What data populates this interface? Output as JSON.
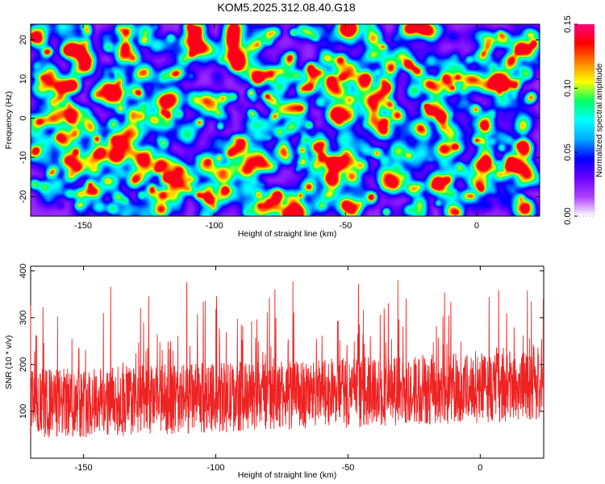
{
  "title": "KOM5.2025.312.08.40.G18",
  "chart_data": [
    {
      "type": "heatmap",
      "xlabel": "Height of straight line (km)",
      "ylabel": "Frequency (Hz)",
      "xlim": [
        -170,
        24
      ],
      "ylim": [
        -25,
        24
      ],
      "xticks": [
        -150,
        -100,
        -50,
        0
      ],
      "yticks": [
        -20,
        -10,
        0,
        10,
        20
      ],
      "colorbar": {
        "label": "Normalized spectral amplitude",
        "range": [
          0.0,
          0.15
        ],
        "ticks": [
          "0.00",
          "0.05",
          "0.10",
          "0.15"
        ],
        "colors": [
          "#ffffff",
          "#b040ff",
          "#6a00ff",
          "#0000ff",
          "#00aaff",
          "#00ffff",
          "#00ff60",
          "#ffff00",
          "#ff8000",
          "#ff0000",
          "#ff0080"
        ]
      }
    },
    {
      "type": "line",
      "xlabel": "Height of straight line (km)",
      "ylabel": "SNR (10 * v/v)",
      "xlim": [
        -170,
        24
      ],
      "ylim": [
        0,
        410
      ],
      "xticks": [
        -150,
        -100,
        -50,
        0
      ],
      "yticks": [
        100,
        200,
        300,
        400
      ],
      "series": [
        {
          "name": "SNR",
          "color": "#ee2222"
        }
      ]
    }
  ]
}
